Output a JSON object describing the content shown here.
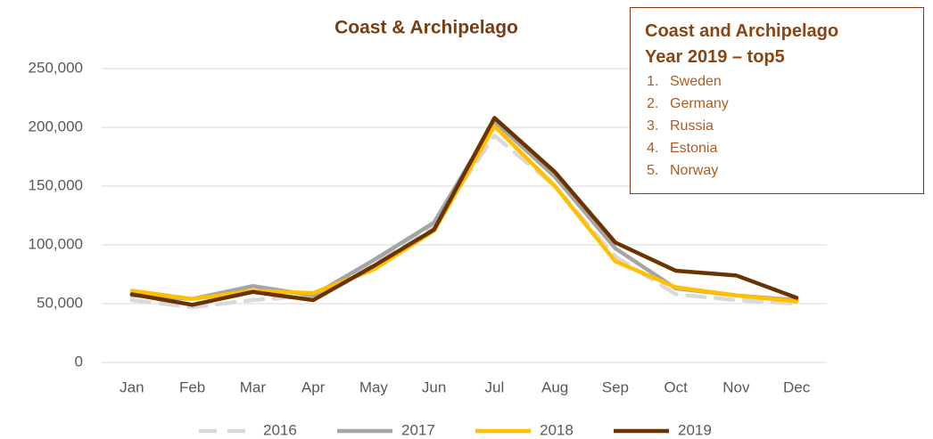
{
  "chart_data": {
    "type": "line",
    "title": "Coast & Archipelago",
    "categories": [
      "Jan",
      "Feb",
      "Mar",
      "Apr",
      "May",
      "Jun",
      "Jul",
      "Aug",
      "Sep",
      "Oct",
      "Nov",
      "Dec"
    ],
    "series": [
      {
        "name": "2016",
        "color": "#d9d9d9",
        "style": "dashed",
        "values": [
          53000,
          47000,
          53000,
          57000,
          83000,
          117000,
          193000,
          150000,
          90000,
          58000,
          53000,
          50000
        ]
      },
      {
        "name": "2017",
        "color": "#a5a5a5",
        "style": "solid",
        "values": [
          57000,
          54000,
          65000,
          57000,
          87000,
          119000,
          205000,
          158000,
          97000,
          63000,
          57000,
          53000
        ]
      },
      {
        "name": "2018",
        "color": "#ffc000",
        "style": "solid",
        "values": [
          61000,
          54000,
          61000,
          59000,
          79000,
          112000,
          201000,
          150000,
          86000,
          64000,
          57000,
          52000
        ]
      },
      {
        "name": "2019",
        "color": "#6b3300",
        "style": "solid",
        "values": [
          58000,
          49000,
          60000,
          53000,
          82000,
          113000,
          208000,
          162000,
          102000,
          78000,
          74000,
          55000
        ]
      }
    ],
    "ylim": [
      0,
      250000
    ],
    "yticks": [
      0,
      {
        "value": 50000,
        "label": "50,000"
      },
      {
        "value": 100000,
        "label": "100,000"
      },
      {
        "value": 150000,
        "label": "150,000"
      },
      {
        "value": 200000,
        "label": "200,000"
      },
      {
        "value": 250000,
        "label": "250,000"
      }
    ],
    "grid": true,
    "legend": "bottom"
  },
  "annotation": {
    "title_lines": [
      "Coast and Archipelago",
      "Year 2019 – top5"
    ],
    "items": [
      {
        "number": "1.",
        "name": "Sweden"
      },
      {
        "number": "2.",
        "name": "Germany"
      },
      {
        "number": "3.",
        "name": "Russia"
      },
      {
        "number": "4.",
        "name": "Estonia"
      },
      {
        "number": "5.",
        "name": "Norway"
      }
    ]
  }
}
